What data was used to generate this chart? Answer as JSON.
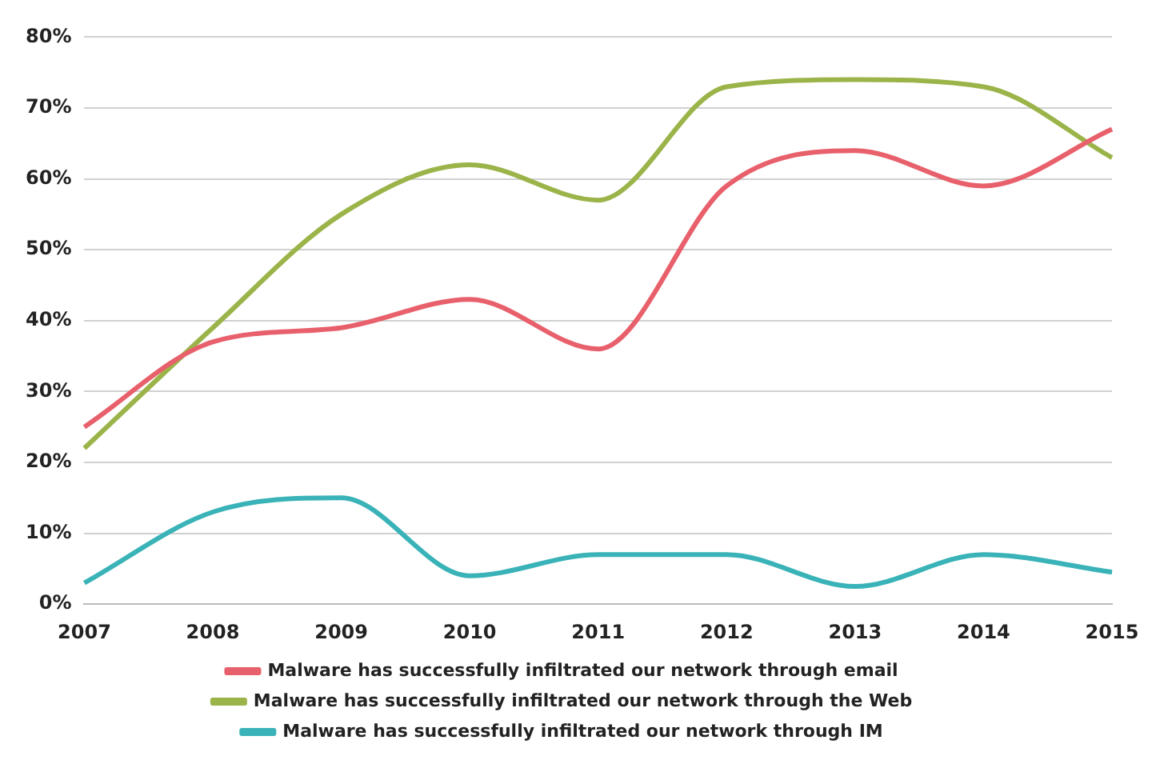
{
  "chart_data": {
    "type": "line",
    "categories": [
      "2007",
      "2008",
      "2009",
      "2010",
      "2011",
      "2012",
      "2013",
      "2014",
      "2015"
    ],
    "series": [
      {
        "name": "Malware has successfully infiltrated our network through email",
        "color": "#e8606b",
        "values": [
          25,
          37,
          39,
          43,
          36,
          59,
          64,
          59,
          67
        ]
      },
      {
        "name": "Malware has successfully infiltrated our network through the Web",
        "color": "#9bb449",
        "values": [
          22,
          39,
          55,
          62,
          57,
          73,
          74,
          73,
          63
        ]
      },
      {
        "name": "Malware has successfully infiltrated our network through IM",
        "color": "#3ab3b8",
        "values": [
          3,
          13,
          15,
          4,
          7,
          7,
          2.5,
          7,
          4.5
        ]
      }
    ],
    "ylim": [
      0,
      80
    ],
    "yticks": [
      {
        "value": 0,
        "label": "0%"
      },
      {
        "value": 10,
        "label": "10%"
      },
      {
        "value": 20,
        "label": "20%"
      },
      {
        "value": 30,
        "label": "30%"
      },
      {
        "value": 40,
        "label": "40%"
      },
      {
        "value": 50,
        "label": "50%"
      },
      {
        "value": 60,
        "label": "60%"
      },
      {
        "value": 70,
        "label": "70%"
      },
      {
        "value": 80,
        "label": "80%"
      }
    ],
    "grid": "y",
    "legend": "bottom",
    "marker": "none",
    "line_style": "solid"
  }
}
